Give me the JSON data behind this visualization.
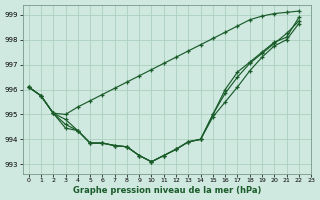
{
  "xlabel": "Graphe pression niveau de la mer (hPa)",
  "background_color": "#cfe8e0",
  "grid_color": "#aacfbe",
  "line_color": "#1a5c2a",
  "xlim": [
    -0.5,
    23
  ],
  "ylim": [
    992.6,
    999.4
  ],
  "yticks": [
    993,
    994,
    995,
    996,
    997,
    998,
    999
  ],
  "xticks": [
    0,
    1,
    2,
    3,
    4,
    5,
    6,
    7,
    8,
    9,
    10,
    11,
    12,
    13,
    14,
    15,
    16,
    17,
    18,
    19,
    20,
    21,
    22,
    23
  ],
  "lines": [
    {
      "x": [
        0,
        1,
        2,
        3,
        4,
        5,
        6,
        7,
        8,
        9,
        10,
        11,
        12,
        13,
        14,
        15,
        16,
        17,
        18,
        19,
        20,
        21,
        22
      ],
      "y": [
        996.1,
        995.75,
        995.05,
        995.0,
        995.3,
        995.55,
        995.8,
        996.05,
        996.3,
        996.55,
        996.8,
        997.05,
        997.3,
        997.55,
        997.8,
        998.05,
        998.3,
        998.55,
        998.8,
        998.95,
        999.05,
        999.1,
        999.15
      ]
    },
    {
      "x": [
        0,
        1,
        2,
        3,
        4,
        5,
        6,
        7,
        8,
        9,
        10,
        11,
        12,
        13,
        14,
        15,
        16,
        17,
        18,
        19,
        20,
        21,
        22
      ],
      "y": [
        996.1,
        995.75,
        995.05,
        994.8,
        994.35,
        993.85,
        993.85,
        993.75,
        993.7,
        993.35,
        993.1,
        993.35,
        993.6,
        993.9,
        994.0,
        995.0,
        996.0,
        996.7,
        997.1,
        997.5,
        997.9,
        998.1,
        998.9
      ]
    },
    {
      "x": [
        0,
        1,
        2,
        3,
        4,
        5,
        6,
        7,
        8,
        9,
        10,
        11,
        12,
        13,
        14,
        15,
        16,
        17,
        18,
        19,
        20,
        21,
        22
      ],
      "y": [
        996.1,
        995.75,
        995.05,
        994.6,
        994.35,
        993.85,
        993.85,
        993.75,
        993.7,
        993.35,
        993.1,
        993.35,
        993.6,
        993.9,
        994.0,
        995.0,
        995.85,
        996.5,
        997.05,
        997.45,
        997.85,
        998.25,
        998.75
      ]
    },
    {
      "x": [
        0,
        1,
        2,
        3,
        4,
        5,
        6,
        7,
        8,
        9,
        10,
        11,
        12,
        13,
        14,
        15,
        16,
        17,
        18,
        19,
        20,
        21,
        22
      ],
      "y": [
        996.1,
        995.75,
        995.05,
        994.45,
        994.35,
        993.85,
        993.85,
        993.75,
        993.7,
        993.35,
        993.1,
        993.35,
        993.6,
        993.9,
        994.0,
        994.9,
        995.5,
        996.1,
        996.75,
        997.3,
        997.75,
        998.0,
        998.65
      ]
    }
  ]
}
